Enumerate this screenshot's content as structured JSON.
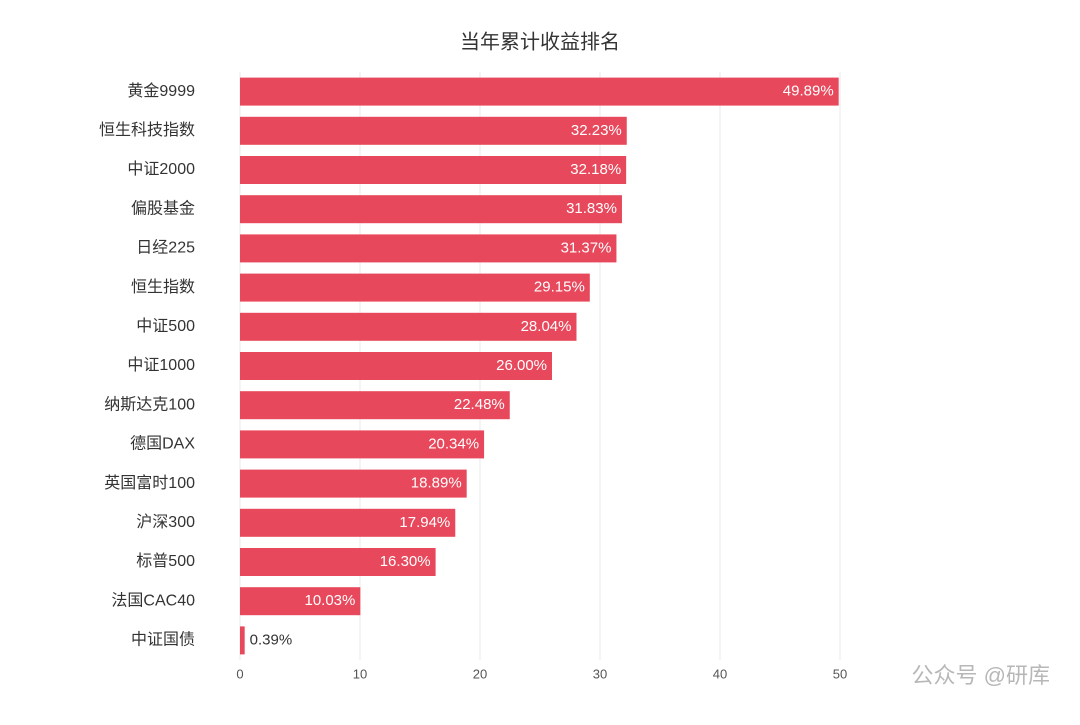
{
  "chart_data": {
    "type": "bar",
    "orientation": "horizontal",
    "title": "当年累计收益排名",
    "categories": [
      "黄金9999",
      "恒生科技指数",
      "中证2000",
      "偏股基金",
      "日经225",
      "恒生指数",
      "中证500",
      "中证1000",
      "纳斯达克100",
      "德国DAX",
      "英国富时100",
      "沪深300",
      "标普500",
      "法国CAC40",
      "中证国债"
    ],
    "values": [
      49.89,
      32.23,
      32.18,
      31.83,
      31.37,
      29.15,
      28.04,
      26.0,
      22.48,
      20.34,
      18.89,
      17.94,
      16.3,
      10.03,
      0.39
    ],
    "value_labels": [
      "49.89%",
      "32.23%",
      "32.18%",
      "31.83%",
      "31.37%",
      "29.15%",
      "28.04%",
      "26.00%",
      "22.48%",
      "20.34%",
      "18.89%",
      "17.94%",
      "16.30%",
      "10.03%",
      "0.39%"
    ],
    "color": "#e8485b",
    "xlim": [
      0,
      50
    ],
    "xticks": [
      0,
      10,
      20,
      30,
      40,
      50
    ],
    "grid": true,
    "watermark": "公众号 @研库"
  }
}
